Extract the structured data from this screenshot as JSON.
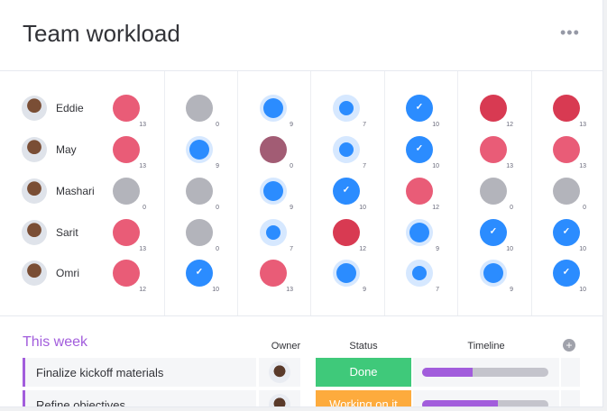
{
  "title": "Team workload",
  "more_icon": "more-horizontal-icon",
  "colors": {
    "over": "#e95c77",
    "overload": "#d83a52",
    "empty": "#b3b4bb",
    "off": "#a25c74",
    "blue": "#2b8cff",
    "ring": "#d6e8ff",
    "done": "#3fc97a",
    "working": "#fdab3d",
    "accent": "#a25ddc"
  },
  "people": [
    {
      "name": "Eddie",
      "cells": [
        {
          "kind": "over",
          "value": "13"
        },
        {
          "kind": "empty",
          "value": "0"
        },
        {
          "kind": "medium",
          "value": "9"
        },
        {
          "kind": "light",
          "value": "7"
        },
        {
          "kind": "full",
          "value": "10"
        },
        {
          "kind": "overload",
          "value": "12"
        },
        {
          "kind": "overload",
          "value": "13"
        }
      ]
    },
    {
      "name": "May",
      "cells": [
        {
          "kind": "over",
          "value": "13"
        },
        {
          "kind": "medium",
          "value": "9"
        },
        {
          "kind": "off",
          "value": "0"
        },
        {
          "kind": "light",
          "value": "7"
        },
        {
          "kind": "full",
          "value": "10"
        },
        {
          "kind": "over",
          "value": "13"
        },
        {
          "kind": "over",
          "value": "13"
        }
      ]
    },
    {
      "name": "Mashari",
      "cells": [
        {
          "kind": "empty",
          "value": "0"
        },
        {
          "kind": "empty",
          "value": "0"
        },
        {
          "kind": "medium",
          "value": "9"
        },
        {
          "kind": "full",
          "value": "10"
        },
        {
          "kind": "over",
          "value": "12"
        },
        {
          "kind": "empty",
          "value": "0"
        },
        {
          "kind": "empty",
          "value": "0"
        }
      ]
    },
    {
      "name": "Sarit",
      "cells": [
        {
          "kind": "over",
          "value": "13"
        },
        {
          "kind": "empty",
          "value": "0"
        },
        {
          "kind": "light",
          "value": "7"
        },
        {
          "kind": "overload",
          "value": "12"
        },
        {
          "kind": "medium",
          "value": "9"
        },
        {
          "kind": "full",
          "value": "10"
        },
        {
          "kind": "full",
          "value": "10"
        }
      ]
    },
    {
      "name": "Omri",
      "cells": [
        {
          "kind": "over",
          "value": "12"
        },
        {
          "kind": "full",
          "value": "10"
        },
        {
          "kind": "over",
          "value": "13"
        },
        {
          "kind": "medium",
          "value": "9"
        },
        {
          "kind": "light",
          "value": "7"
        },
        {
          "kind": "medium",
          "value": "9"
        },
        {
          "kind": "full",
          "value": "10"
        }
      ]
    }
  ],
  "board": {
    "group": "This week",
    "columns": {
      "owner": "Owner",
      "status": "Status",
      "timeline": "Timeline"
    },
    "add_icon": "plus-circle-icon",
    "tasks": [
      {
        "name": "Finalize kickoff materials",
        "status": "Done",
        "status_kind": "done",
        "timeline_progress": 0.4
      },
      {
        "name": "Refine objectives",
        "status": "Working on it",
        "status_kind": "working",
        "timeline_progress": 0.6
      }
    ]
  }
}
